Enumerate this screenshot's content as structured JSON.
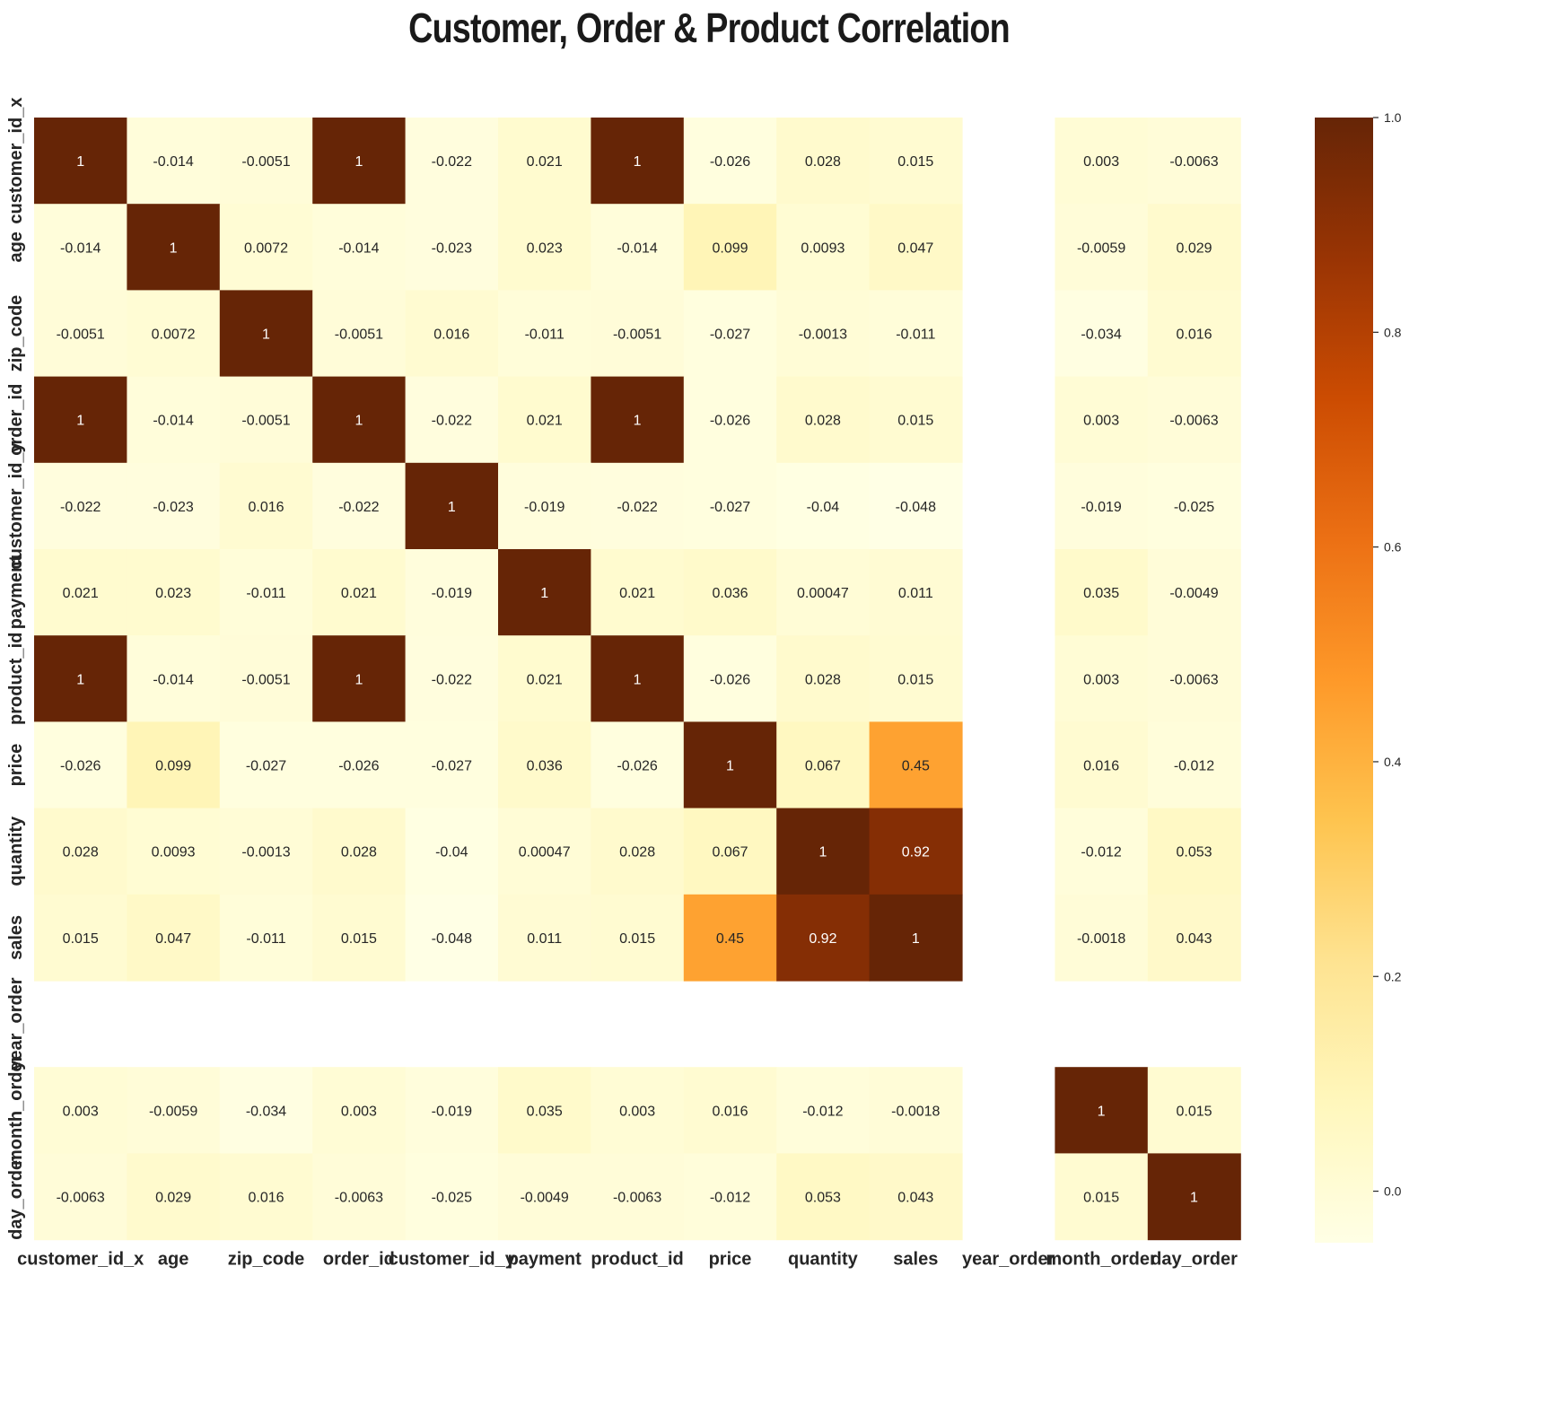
{
  "chart_data": {
    "type": "heatmap",
    "title": "Customer, Order & Product Correlation",
    "xlabel": "",
    "ylabel": "",
    "labels": [
      "customer_id_x",
      "age",
      "zip_code",
      "order_id",
      "customer_id_y",
      "payment",
      "product_id",
      "price",
      "quantity",
      "sales",
      "year_order",
      "month_order",
      "day_order"
    ],
    "matrix": [
      [
        1,
        -0.014,
        -0.0051,
        1,
        -0.022,
        0.021,
        1,
        -0.026,
        0.028,
        0.015,
        null,
        0.003,
        -0.0063
      ],
      [
        -0.014,
        1,
        0.0072,
        -0.014,
        -0.023,
        0.023,
        -0.014,
        0.099,
        0.0093,
        0.047,
        null,
        -0.0059,
        0.029
      ],
      [
        -0.0051,
        0.0072,
        1,
        -0.0051,
        0.016,
        -0.011,
        -0.0051,
        -0.027,
        -0.0013,
        -0.011,
        null,
        -0.034,
        0.016
      ],
      [
        1,
        -0.014,
        -0.0051,
        1,
        -0.022,
        0.021,
        1,
        -0.026,
        0.028,
        0.015,
        null,
        0.003,
        -0.0063
      ],
      [
        -0.022,
        -0.023,
        0.016,
        -0.022,
        1,
        -0.019,
        -0.022,
        -0.027,
        -0.04,
        -0.048,
        null,
        -0.019,
        -0.025
      ],
      [
        0.021,
        0.023,
        -0.011,
        0.021,
        -0.019,
        1,
        0.021,
        0.036,
        0.00047,
        0.011,
        null,
        0.035,
        -0.0049
      ],
      [
        1,
        -0.014,
        -0.0051,
        1,
        -0.022,
        0.021,
        1,
        -0.026,
        0.028,
        0.015,
        null,
        0.003,
        -0.0063
      ],
      [
        -0.026,
        0.099,
        -0.027,
        -0.026,
        -0.027,
        0.036,
        -0.026,
        1,
        0.067,
        0.45,
        null,
        0.016,
        -0.012
      ],
      [
        0.028,
        0.0093,
        -0.0013,
        0.028,
        -0.04,
        0.00047,
        0.028,
        0.067,
        1,
        0.92,
        null,
        -0.012,
        0.053
      ],
      [
        0.015,
        0.047,
        -0.011,
        0.015,
        -0.048,
        0.011,
        0.015,
        0.45,
        0.92,
        1,
        null,
        -0.0018,
        0.043
      ],
      [
        null,
        null,
        null,
        null,
        null,
        null,
        null,
        null,
        null,
        null,
        null,
        null,
        null
      ],
      [
        0.003,
        -0.0059,
        -0.034,
        0.003,
        -0.019,
        0.035,
        0.003,
        0.016,
        -0.012,
        -0.0018,
        null,
        1,
        0.015
      ],
      [
        -0.0063,
        0.029,
        0.016,
        -0.0063,
        -0.025,
        -0.0049,
        -0.0063,
        -0.012,
        0.053,
        0.043,
        null,
        0.015,
        1
      ]
    ],
    "cell_labels": [
      [
        "1",
        "-0.014",
        "-0.0051",
        "1",
        "-0.022",
        "0.021",
        "1",
        "-0.026",
        "0.028",
        "0.015",
        "",
        "0.003",
        "-0.0063"
      ],
      [
        "-0.014",
        "1",
        "0.0072",
        "-0.014",
        "-0.023",
        "0.023",
        "-0.014",
        "0.099",
        "0.0093",
        "0.047",
        "",
        "-0.0059",
        "0.029"
      ],
      [
        "-0.0051",
        "0.0072",
        "1",
        "-0.0051",
        "0.016",
        "-0.011",
        "-0.0051",
        "-0.027",
        "-0.0013",
        "-0.011",
        "",
        "-0.034",
        "0.016"
      ],
      [
        "1",
        "-0.014",
        "-0.0051",
        "1",
        "-0.022",
        "0.021",
        "1",
        "-0.026",
        "0.028",
        "0.015",
        "",
        "0.003",
        "-0.0063"
      ],
      [
        "-0.022",
        "-0.023",
        "0.016",
        "-0.022",
        "1",
        "-0.019",
        "-0.022",
        "-0.027",
        "-0.04",
        "-0.048",
        "",
        "-0.019",
        "-0.025"
      ],
      [
        "0.021",
        "0.023",
        "-0.011",
        "0.021",
        "-0.019",
        "1",
        "0.021",
        "0.036",
        "0.00047",
        "0.011",
        "",
        "0.035",
        "-0.0049"
      ],
      [
        "1",
        "-0.014",
        "-0.0051",
        "1",
        "-0.022",
        "0.021",
        "1",
        "-0.026",
        "0.028",
        "0.015",
        "",
        "0.003",
        "-0.0063"
      ],
      [
        "-0.026",
        "0.099",
        "-0.027",
        "-0.026",
        "-0.027",
        "0.036",
        "-0.026",
        "1",
        "0.067",
        "0.45",
        "",
        "0.016",
        "-0.012"
      ],
      [
        "0.028",
        "0.0093",
        "-0.0013",
        "0.028",
        "-0.04",
        "0.00047",
        "0.028",
        "0.067",
        "1",
        "0.92",
        "",
        "-0.012",
        "0.053"
      ],
      [
        "0.015",
        "0.047",
        "-0.011",
        "0.015",
        "-0.048",
        "0.011",
        "0.015",
        "0.45",
        "0.92",
        "1",
        "",
        "-0.0018",
        "0.043"
      ],
      [
        "",
        "",
        "",
        "",
        "",
        "",
        "",
        "",
        "",
        "",
        "",
        "",
        ""
      ],
      [
        "0.003",
        "-0.0059",
        "-0.034",
        "0.003",
        "-0.019",
        "0.035",
        "0.003",
        "0.016",
        "-0.012",
        "-0.0018",
        "",
        "1",
        "0.015"
      ],
      [
        "-0.0063",
        "0.029",
        "0.016",
        "-0.0063",
        "-0.025",
        "-0.0049",
        "-0.0063",
        "-0.012",
        "0.053",
        "0.043",
        "",
        "0.015",
        "1"
      ]
    ],
    "colormap": "YlOrBr",
    "colormap_stops": [
      "#ffffe5",
      "#fff7bc",
      "#fee391",
      "#fec44f",
      "#fe9929",
      "#ec7014",
      "#cc4c02",
      "#993404",
      "#662506"
    ],
    "vmin": -0.048,
    "vmax": 1,
    "colorbar_ticks": [
      "0.0",
      "0.2",
      "0.4",
      "0.6",
      "0.8",
      "1.0"
    ],
    "colorbar_tick_values": [
      0,
      0.2,
      0.4,
      0.6,
      0.8,
      1.0
    ],
    "annotation_colors": {
      "dark": "#262626",
      "light": "#ffffff"
    },
    "grid": false,
    "legend": "colorbar-right"
  }
}
